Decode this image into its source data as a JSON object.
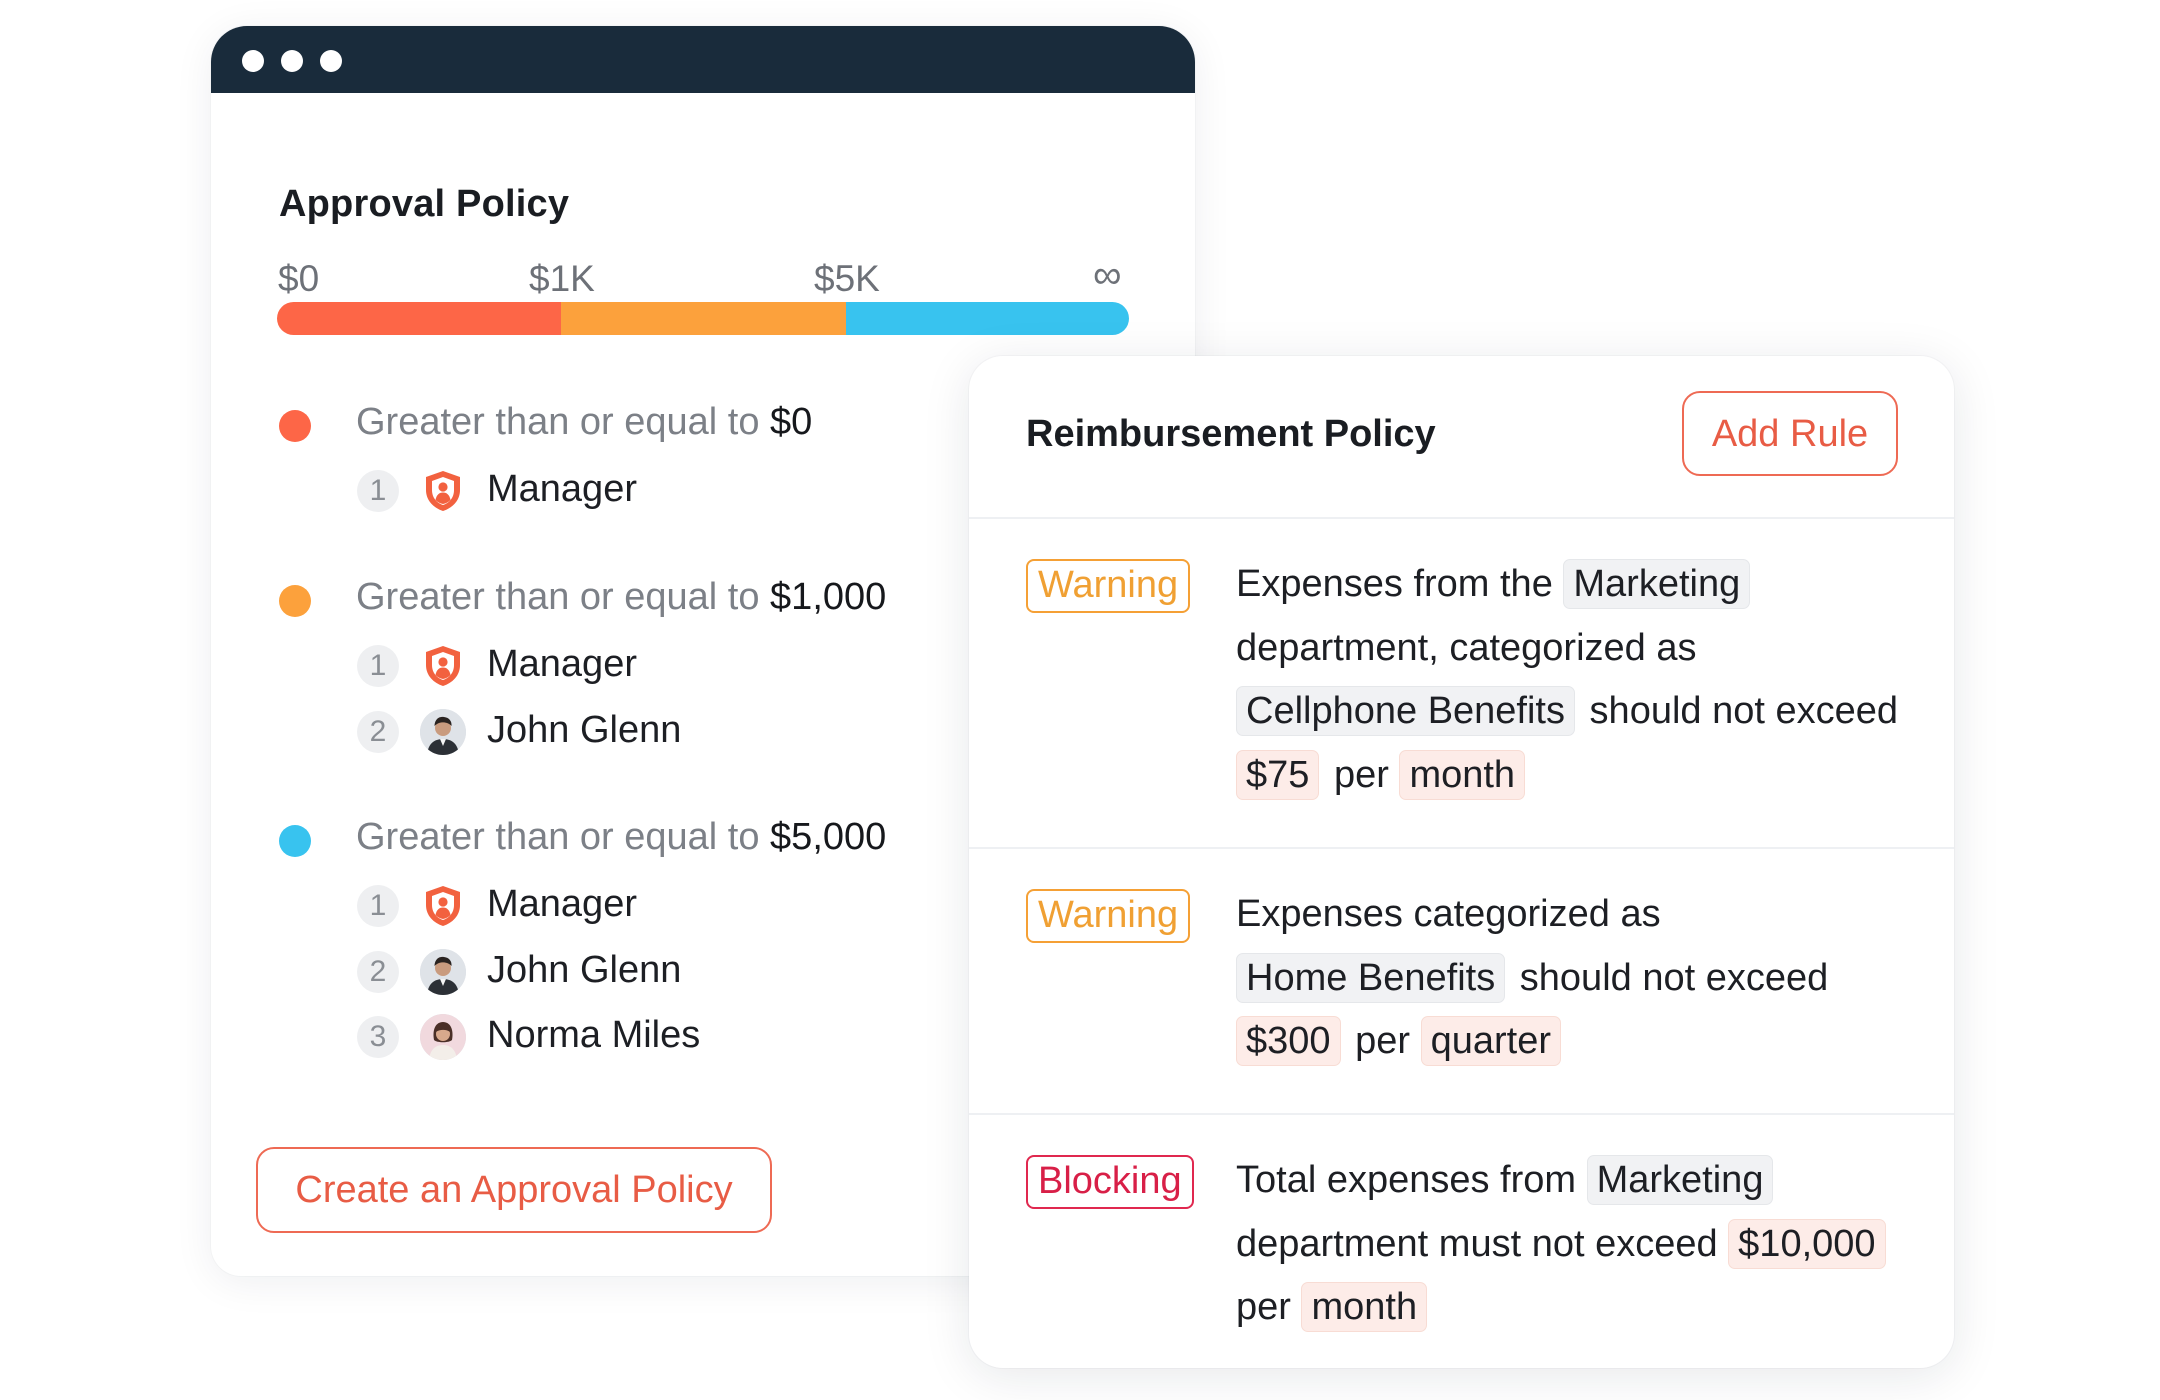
{
  "approval": {
    "title": "Approval Policy",
    "scale": {
      "labels": [
        "$0",
        "$1K",
        "$5K",
        "∞"
      ],
      "segments": [
        {
          "color": "#fd6647"
        },
        {
          "color": "#fca13c"
        },
        {
          "color": "#38c3ef"
        }
      ]
    },
    "tiers": [
      {
        "color": "#fd6647",
        "condition": "Greater than or equal to",
        "amount": "$0",
        "approvers": [
          {
            "num": "1",
            "name": "Manager",
            "icon": "shield-icon"
          }
        ]
      },
      {
        "color": "#fca13c",
        "condition": "Greater than or equal to",
        "amount": "$1,000",
        "approvers": [
          {
            "num": "1",
            "name": "Manager",
            "icon": "shield-icon"
          },
          {
            "num": "2",
            "name": "John Glenn",
            "icon": "avatar-male"
          }
        ]
      },
      {
        "color": "#38c3ef",
        "condition": "Greater than or equal to",
        "amount": "$5,000",
        "approvers": [
          {
            "num": "1",
            "name": "Manager",
            "icon": "shield-icon"
          },
          {
            "num": "2",
            "name": "John Glenn",
            "icon": "avatar-male"
          },
          {
            "num": "3",
            "name": "Norma Miles",
            "icon": "avatar-female"
          }
        ]
      }
    ],
    "create_button": "Create an Approval Policy"
  },
  "reimbursement": {
    "title": "Reimbursement Policy",
    "add_button": "Add Rule",
    "rules": [
      {
        "severity": "Warning",
        "tokens": [
          {
            "t": "Expenses from the "
          },
          {
            "t": "Marketing",
            "chip": "gray"
          },
          {
            "t": " department, categorized as "
          },
          {
            "t": "Cellphone Benefits",
            "chip": "gray"
          },
          {
            "t": " should not exceed "
          },
          {
            "t": "$75",
            "chip": "pink"
          },
          {
            "t": " per "
          },
          {
            "t": "month",
            "chip": "pink"
          }
        ]
      },
      {
        "severity": "Warning",
        "tokens": [
          {
            "t": "Expenses categorized as "
          },
          {
            "t": "Home Benefits",
            "chip": "gray"
          },
          {
            "t": " should not exceed "
          },
          {
            "t": "$300",
            "chip": "pink"
          },
          {
            "t": " per "
          },
          {
            "t": "quarter",
            "chip": "pink"
          }
        ]
      },
      {
        "severity": "Blocking",
        "tokens": [
          {
            "t": "Total expenses from "
          },
          {
            "t": "Marketing",
            "chip": "gray"
          },
          {
            "t": " department must not exceed "
          },
          {
            "t": "$10,000",
            "chip": "pink"
          },
          {
            "t": " per "
          },
          {
            "t": "month",
            "chip": "pink"
          }
        ]
      }
    ]
  }
}
